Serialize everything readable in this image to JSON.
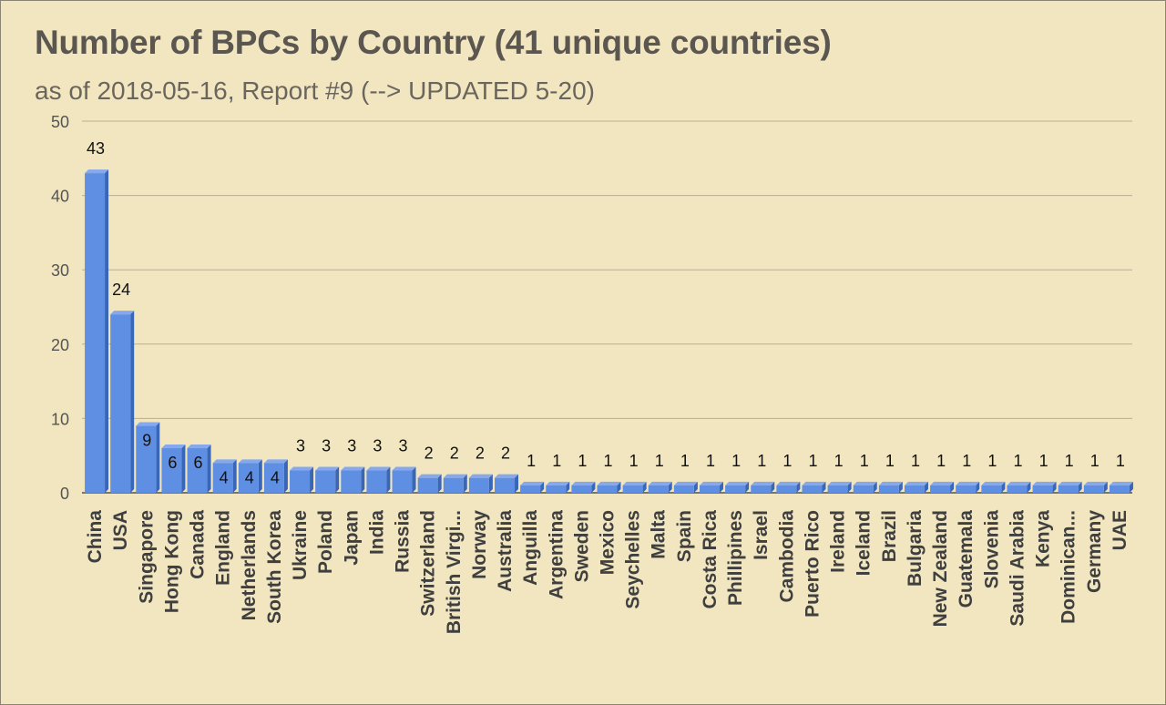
{
  "chart_data": {
    "type": "bar",
    "title": "Number of BPCs by Country (41 unique countries)",
    "subtitle": "as of 2018-05-16, Report #9 (--> UPDATED 5-20)",
    "xlabel": "",
    "ylabel": "",
    "ylim": [
      0,
      50
    ],
    "yticks": [
      0,
      10,
      20,
      30,
      40,
      50
    ],
    "grid": true,
    "legend": "none",
    "categories": [
      "China",
      "USA",
      "Singapore",
      "Hong Kong",
      "Canada",
      "England",
      "Netherlands",
      "South Korea",
      "Ukraine",
      "Poland",
      "Japan",
      "India",
      "Russia",
      "Switzerland",
      "British Virgi...",
      "Norway",
      "Australia",
      "Anguilla",
      "Argentina",
      "Sweden",
      "Mexico",
      "Seychelles",
      "Malta",
      "Spain",
      "Costa Rica",
      "Phillipines",
      "Israel",
      "Cambodia",
      "Puerto Rico",
      "Ireland",
      "Iceland",
      "Brazil",
      "Bulgaria",
      "New Zealand",
      "Guatemala",
      "Slovenia",
      "Saudi Arabia",
      "Kenya",
      "Dominican...",
      "Germany",
      "UAE"
    ],
    "values": [
      43,
      24,
      9,
      6,
      6,
      4,
      4,
      4,
      3,
      3,
      3,
      3,
      3,
      2,
      2,
      2,
      2,
      1,
      1,
      1,
      1,
      1,
      1,
      1,
      1,
      1,
      1,
      1,
      1,
      1,
      1,
      1,
      1,
      1,
      1,
      1,
      1,
      1,
      1,
      1,
      1
    ],
    "bar_color": "#5f8fe2",
    "background_color": "#f2e6c0",
    "gridline_color": "#b8ae94"
  }
}
